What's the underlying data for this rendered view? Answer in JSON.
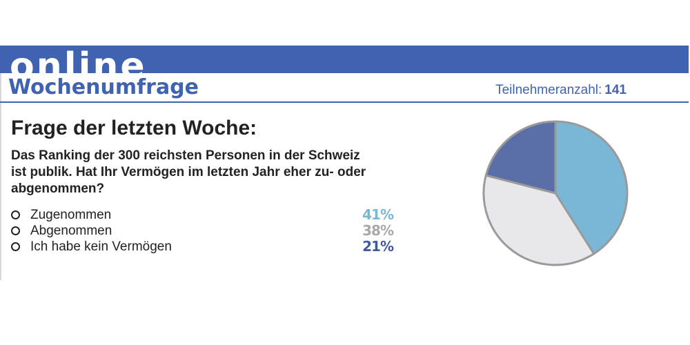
{
  "banner": {
    "word": "online"
  },
  "header": {
    "title": "Wochenumfrage",
    "participants_label": "Teilnehmeranzahl:",
    "participants_count": "141"
  },
  "question": {
    "heading": "Frage der letzten Woche:",
    "text": "Das Ranking der 300 reichsten Personen in der Schweiz ist publik. Hat Ihr Vermögen im letzten Jahr eher zu- oder abgenommen?"
  },
  "options": [
    {
      "label": "Zugenommen",
      "percent_label": "41%",
      "color": "#7ab6d6"
    },
    {
      "label": "Abgenommen",
      "percent_label": "38%",
      "color": "#a8a8a8"
    },
    {
      "label": "Ich habe kein Vermögen",
      "percent_label": "21%",
      "color": "#3f5a9e"
    }
  ],
  "colors": {
    "brand_blue": "#3f63b0",
    "pie_border": "#9a9a9a"
  },
  "chart_data": {
    "type": "pie",
    "categories": [
      "Zugenommen",
      "Abgenommen",
      "Ich habe kein Vermögen"
    ],
    "values": [
      41,
      38,
      21
    ],
    "slice_colors": [
      "#7ab6d6",
      "#e8e8ec",
      "#5a6fa8"
    ],
    "legend": "left",
    "title": ""
  }
}
